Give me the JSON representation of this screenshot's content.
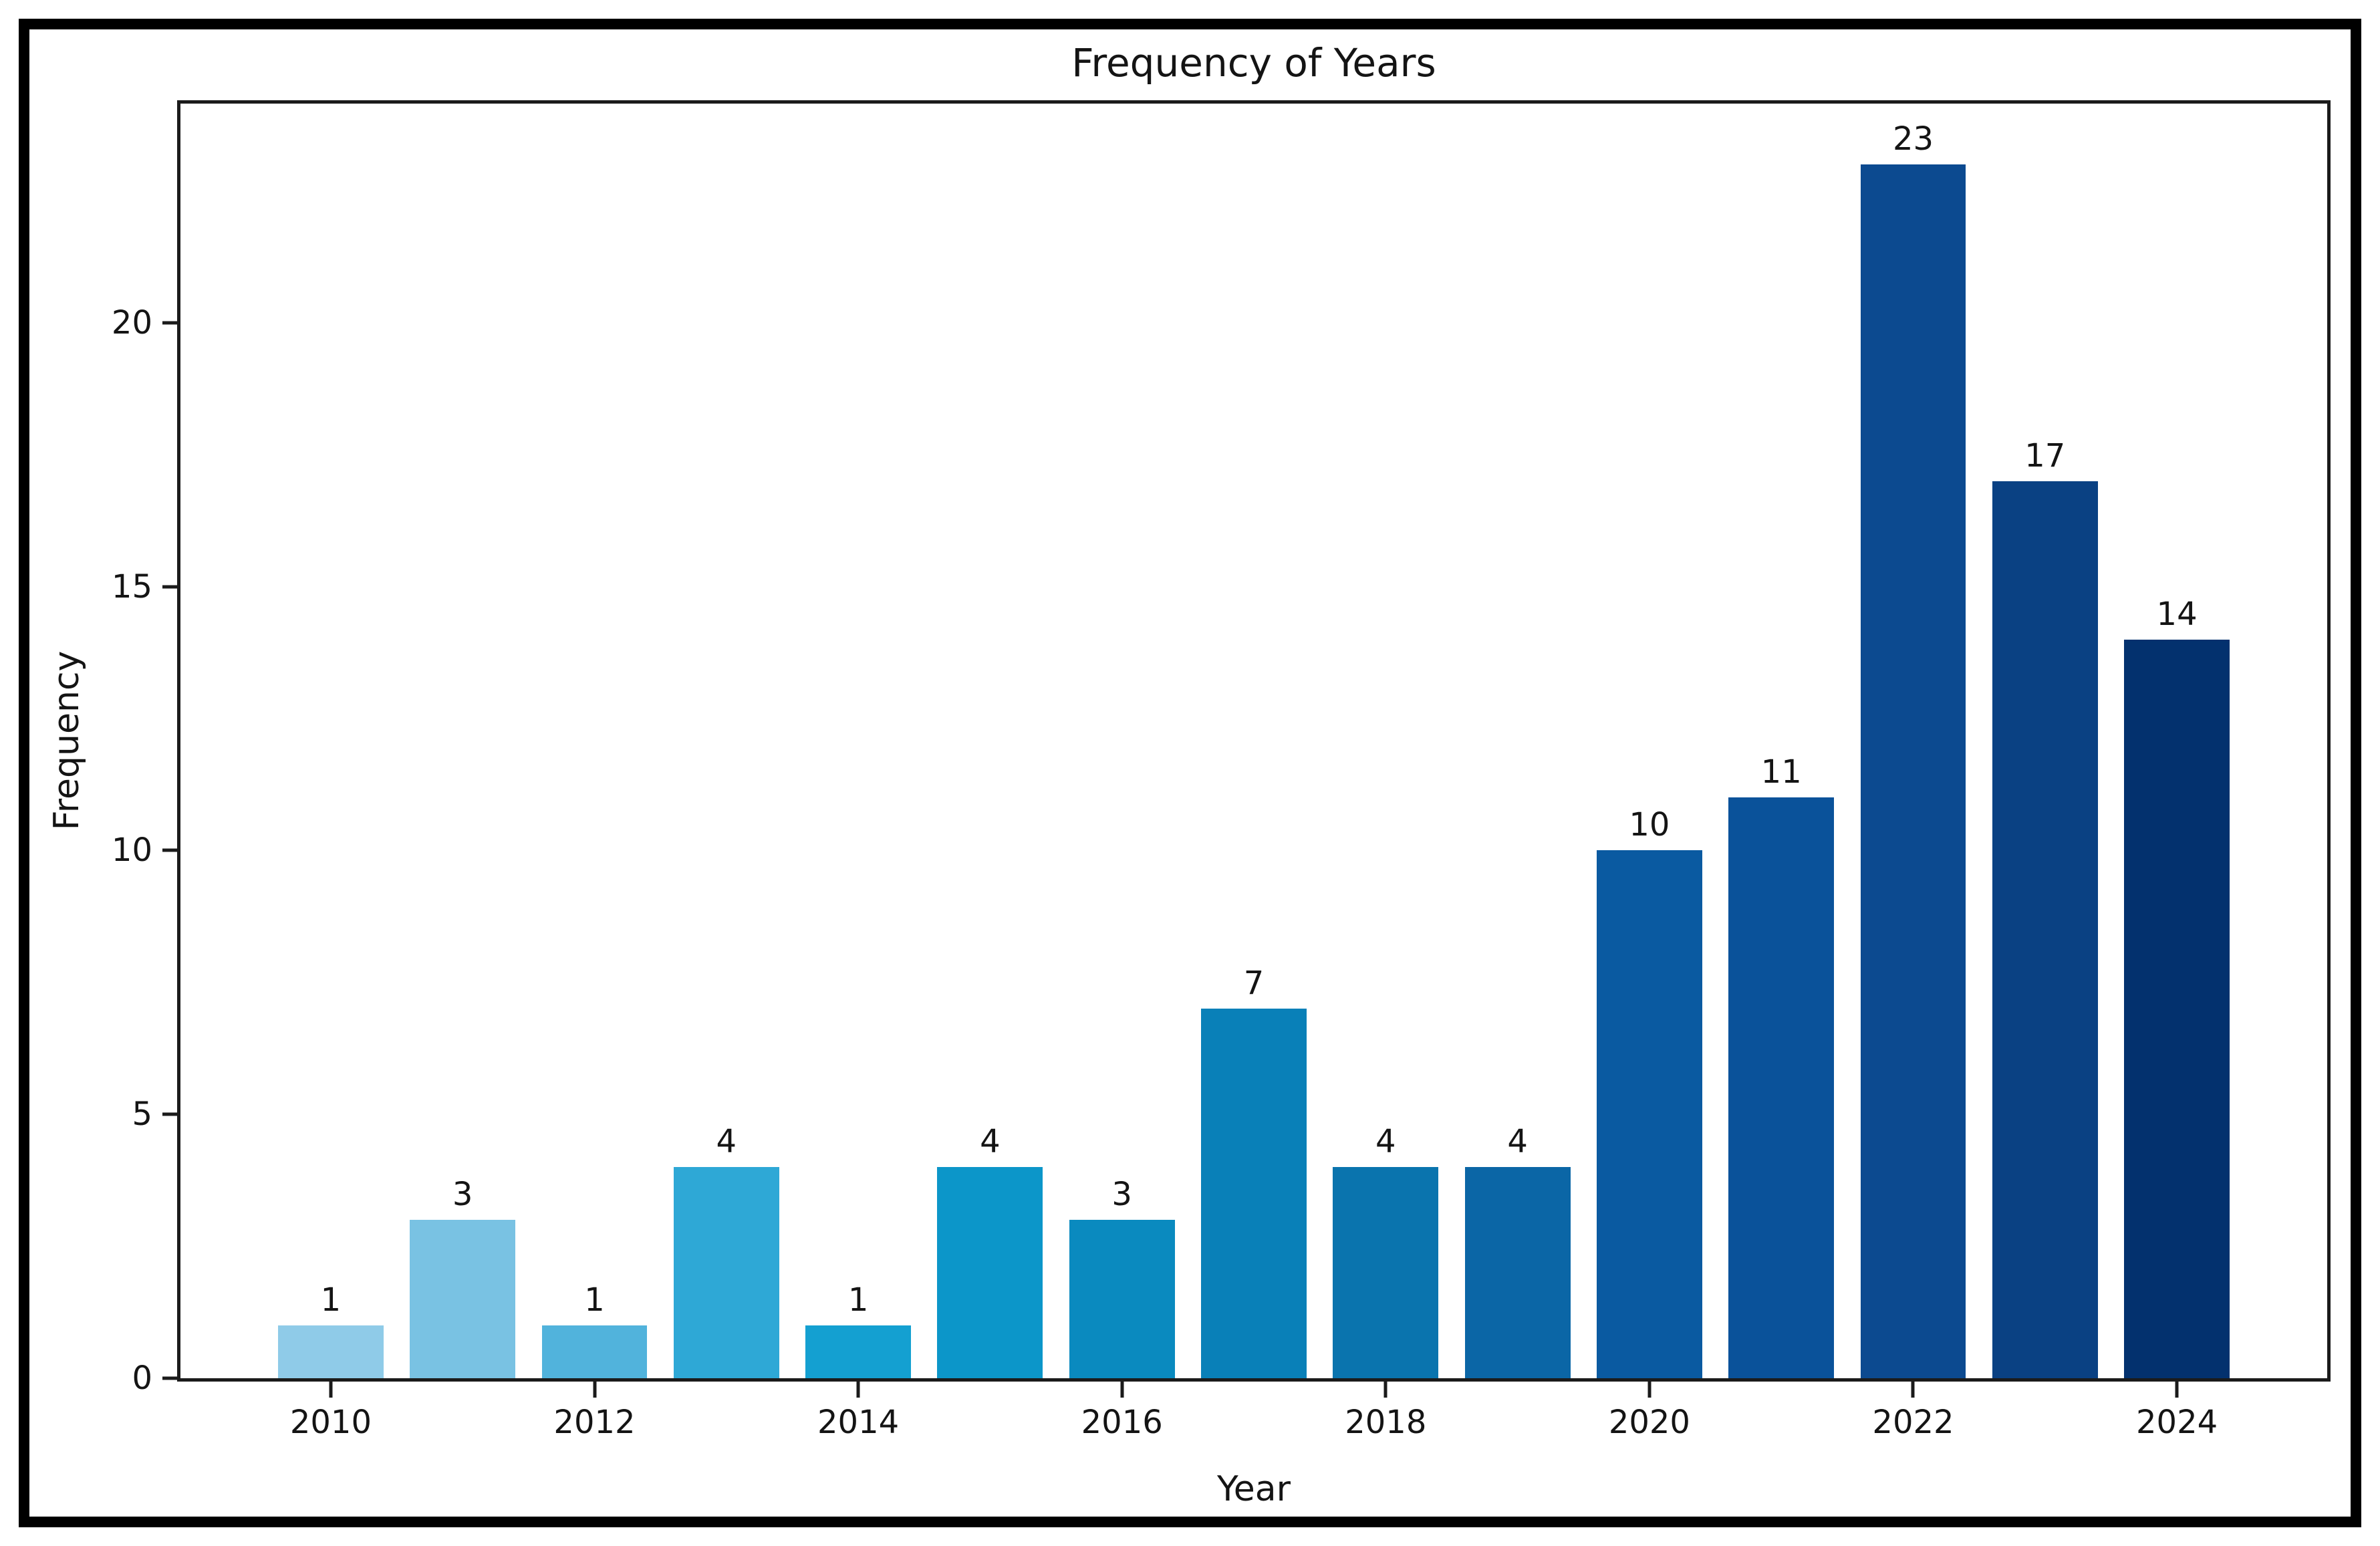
{
  "chart_data": {
    "type": "bar",
    "title": "Frequency of Years",
    "xlabel": "Year",
    "ylabel": "Frequency",
    "categories": [
      "2010",
      "2011",
      "2012",
      "2013",
      "2014",
      "2015",
      "2016",
      "2017",
      "2018",
      "2019",
      "2020",
      "2021",
      "2022",
      "2023",
      "2024"
    ],
    "values": [
      1,
      3,
      1,
      4,
      1,
      4,
      3,
      7,
      4,
      4,
      10,
      11,
      23,
      17,
      14
    ],
    "bar_value_labels": [
      "1",
      "3",
      "1",
      "4",
      "1",
      "4",
      "3",
      "7",
      "4",
      "4",
      "10",
      "11",
      "23",
      "17",
      "14"
    ],
    "bar_colors": [
      "#8fcbe8",
      "#79c2e3",
      "#51b3dc",
      "#2ea8d6",
      "#14a0d1",
      "#0c96c9",
      "#0a8abf",
      "#0980b8",
      "#0a74ae",
      "#0b66a6",
      "#0a5aa1",
      "#0a529a",
      "#0c4a90",
      "#0a4183",
      "#03316e"
    ],
    "yticks": [
      0,
      5,
      10,
      15,
      20
    ],
    "ytick_labels": [
      "0",
      "5",
      "10",
      "15",
      "20"
    ],
    "xtick_labels": [
      "2010",
      "2012",
      "2014",
      "2016",
      "2018",
      "2020",
      "2022",
      "2024"
    ],
    "ylim": [
      0,
      24.15
    ],
    "grid": false,
    "legend": null,
    "spine_color": "#1b1b1b",
    "text_color": "#141414",
    "background_color": "#ffffff",
    "frame_color": "#000000"
  }
}
